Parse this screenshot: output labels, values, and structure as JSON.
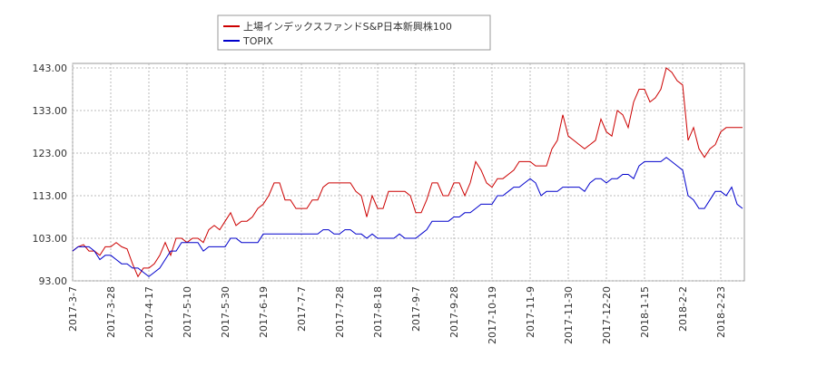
{
  "chart_data": {
    "type": "line",
    "categories": [
      "2017-3-7",
      null,
      null,
      null,
      null,
      null,
      null,
      "2017-3-28",
      null,
      null,
      null,
      null,
      null,
      null,
      "2017-4-17",
      null,
      null,
      null,
      null,
      null,
      null,
      "2017-5-10",
      null,
      null,
      null,
      null,
      null,
      null,
      "2017-5-30",
      null,
      null,
      null,
      null,
      null,
      null,
      "2017-6-19",
      null,
      null,
      null,
      null,
      null,
      null,
      "2017-7-7",
      null,
      null,
      null,
      null,
      null,
      null,
      "2017-7-28",
      null,
      null,
      null,
      null,
      null,
      null,
      "2017-8-18",
      null,
      null,
      null,
      null,
      null,
      null,
      "2017-9-7",
      null,
      null,
      null,
      null,
      null,
      null,
      "2017-9-28",
      null,
      null,
      null,
      null,
      null,
      null,
      "2017-10-19",
      null,
      null,
      null,
      null,
      null,
      null,
      "2017-11-9",
      null,
      null,
      null,
      null,
      null,
      null,
      "2017-11-30",
      null,
      null,
      null,
      null,
      null,
      null,
      "2017-12-20",
      null,
      null,
      null,
      null,
      null,
      null,
      "2018-1-15",
      null,
      null,
      null,
      null,
      null,
      null,
      "2018-2-2",
      null,
      null,
      null,
      null,
      null,
      null,
      "2018-2-23",
      null,
      null,
      null,
      null
    ],
    "series": [
      {
        "name": "上場インデックスファンドS&P日本新興株100",
        "color": "#cc0000",
        "values": [
          100,
          101,
          101.5,
          100,
          100,
          99,
          101,
          101,
          102,
          101,
          100.5,
          97,
          94,
          96,
          96,
          97,
          99,
          102,
          99,
          103,
          103,
          102,
          103,
          103,
          102,
          105,
          106,
          105,
          107,
          109,
          106,
          107,
          107,
          108,
          110,
          111,
          113,
          116,
          116,
          112,
          112,
          110,
          110,
          110,
          112,
          112,
          115,
          116,
          116,
          116,
          116,
          116,
          114,
          113,
          108,
          113,
          110,
          110,
          114,
          114,
          114,
          114,
          113,
          109,
          109,
          112,
          116,
          116,
          113,
          113,
          116,
          116,
          113,
          116,
          121,
          119,
          116,
          115,
          117,
          117,
          118,
          119,
          121,
          121,
          121,
          120,
          120,
          120,
          124,
          126,
          132,
          127,
          126,
          125,
          124,
          125,
          126,
          131,
          128,
          127,
          133,
          132,
          129,
          135,
          138,
          138,
          135,
          136,
          138,
          143,
          142,
          140,
          139,
          126,
          129,
          124,
          122,
          124,
          125,
          128,
          129,
          129,
          129,
          129
        ]
      },
      {
        "name": "TOPIX",
        "color": "#0000cc",
        "values": [
          100,
          101,
          101,
          101,
          100,
          98,
          99,
          99,
          98,
          97,
          97,
          96,
          96,
          95,
          94,
          95,
          96,
          98,
          100,
          100,
          102,
          102,
          102,
          102,
          100,
          101,
          101,
          101,
          101,
          103,
          103,
          102,
          102,
          102,
          102,
          104,
          104,
          104,
          104,
          104,
          104,
          104,
          104,
          104,
          104,
          104,
          105,
          105,
          104,
          104,
          105,
          105,
          104,
          104,
          103,
          104,
          103,
          103,
          103,
          103,
          104,
          103,
          103,
          103,
          104,
          105,
          107,
          107,
          107,
          107,
          108,
          108,
          109,
          109,
          110,
          111,
          111,
          111,
          113,
          113,
          114,
          115,
          115,
          116,
          117,
          116,
          113,
          114,
          114,
          114,
          115,
          115,
          115,
          115,
          114,
          116,
          117,
          117,
          116,
          117,
          117,
          118,
          118,
          117,
          120,
          121,
          121,
          121,
          121,
          122,
          121,
          120,
          119,
          113,
          112,
          110,
          110,
          112,
          114,
          114,
          113,
          115,
          111,
          110
        ]
      }
    ],
    "ylim": [
      93,
      143
    ],
    "yticks": [
      {
        "value": 93,
        "label": "93.00"
      },
      {
        "value": 103,
        "label": "103.00"
      },
      {
        "value": 113,
        "label": "113.00"
      },
      {
        "value": 123,
        "label": "123.00"
      },
      {
        "value": 133,
        "label": "133.00"
      },
      {
        "value": 143,
        "label": "143.00"
      }
    ],
    "grid": true,
    "legend": "top"
  }
}
